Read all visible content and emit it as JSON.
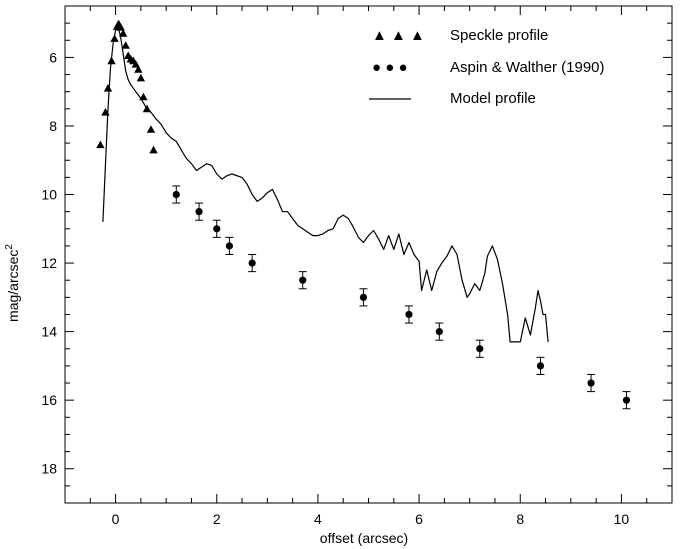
{
  "chart_data": {
    "type": "scatter",
    "title": "",
    "xlabel": "offset (arcsec)",
    "ylabel": "mag/arcsec",
    "ylabel_superscript": "2",
    "xlim": [
      -1.0,
      11.0
    ],
    "ylim": [
      19.0,
      4.5
    ],
    "y_inverted": true,
    "grid": false,
    "legend_position": "top-right",
    "x_ticks": [
      0,
      2,
      4,
      6,
      8,
      10
    ],
    "x_tick_labels": [
      "0",
      "2",
      "4",
      "6",
      "8",
      "10"
    ],
    "y_ticks": [
      6,
      8,
      10,
      12,
      14,
      16,
      18
    ],
    "y_tick_labels": [
      "6",
      "8",
      "10",
      "12",
      "14",
      "16",
      "18"
    ],
    "series": [
      {
        "name": "Speckle profile",
        "kind": "triangle",
        "color": "#000000",
        "legend_marker": "▲  ▲  ▲",
        "points": [
          [
            -0.3,
            8.55
          ],
          [
            -0.2,
            7.6
          ],
          [
            -0.15,
            6.9
          ],
          [
            -0.08,
            6.1
          ],
          [
            -0.02,
            5.45
          ],
          [
            0.03,
            5.1
          ],
          [
            0.06,
            5.02
          ],
          [
            0.1,
            5.12
          ],
          [
            0.15,
            5.3
          ],
          [
            0.2,
            5.65
          ],
          [
            0.25,
            5.95
          ],
          [
            0.3,
            6.05
          ],
          [
            0.35,
            6.1
          ],
          [
            0.4,
            6.2
          ],
          [
            0.45,
            6.35
          ],
          [
            0.5,
            6.6
          ],
          [
            0.55,
            7.15
          ],
          [
            0.62,
            7.5
          ],
          [
            0.7,
            8.1
          ],
          [
            0.75,
            8.7
          ]
        ]
      },
      {
        "name": "Aspin & Walther (1990)",
        "kind": "circle",
        "color": "#000000",
        "legend_marker": "●  ●  ●",
        "error": 0.25,
        "points": [
          [
            1.2,
            10.0
          ],
          [
            1.65,
            10.5
          ],
          [
            2.0,
            11.0
          ],
          [
            2.25,
            11.5
          ],
          [
            2.7,
            12.0
          ],
          [
            3.7,
            12.5
          ],
          [
            4.9,
            13.0
          ],
          [
            5.8,
            13.5
          ],
          [
            6.4,
            14.0
          ],
          [
            7.2,
            14.5
          ],
          [
            8.4,
            15.0
          ],
          [
            9.4,
            15.5
          ],
          [
            10.1,
            16.0
          ]
        ]
      },
      {
        "name": "Model profile",
        "kind": "line",
        "color": "#000000",
        "points": [
          [
            -0.25,
            10.8
          ],
          [
            -0.2,
            9.1
          ],
          [
            -0.15,
            7.5
          ],
          [
            -0.1,
            6.3
          ],
          [
            -0.05,
            5.6
          ],
          [
            0.0,
            5.2
          ],
          [
            0.05,
            5.1
          ],
          [
            0.1,
            5.4
          ],
          [
            0.15,
            5.9
          ],
          [
            0.2,
            6.4
          ],
          [
            0.25,
            6.65
          ],
          [
            0.3,
            6.8
          ],
          [
            0.4,
            7.0
          ],
          [
            0.5,
            7.2
          ],
          [
            0.6,
            7.45
          ],
          [
            0.7,
            7.6
          ],
          [
            0.8,
            7.8
          ],
          [
            0.9,
            7.95
          ],
          [
            1.0,
            8.2
          ],
          [
            1.1,
            8.35
          ],
          [
            1.2,
            8.45
          ],
          [
            1.3,
            8.7
          ],
          [
            1.4,
            8.95
          ],
          [
            1.5,
            9.1
          ],
          [
            1.6,
            9.3
          ],
          [
            1.7,
            9.2
          ],
          [
            1.8,
            9.1
          ],
          [
            1.9,
            9.15
          ],
          [
            2.0,
            9.4
          ],
          [
            2.1,
            9.55
          ],
          [
            2.2,
            9.45
          ],
          [
            2.3,
            9.4
          ],
          [
            2.5,
            9.5
          ],
          [
            2.6,
            9.7
          ],
          [
            2.7,
            10.0
          ],
          [
            2.8,
            10.2
          ],
          [
            2.9,
            10.1
          ],
          [
            3.0,
            9.95
          ],
          [
            3.1,
            9.85
          ],
          [
            3.2,
            10.15
          ],
          [
            3.3,
            10.5
          ],
          [
            3.4,
            10.5
          ],
          [
            3.5,
            10.7
          ],
          [
            3.6,
            10.9
          ],
          [
            3.7,
            11.0
          ],
          [
            3.8,
            11.1
          ],
          [
            3.9,
            11.2
          ],
          [
            4.0,
            11.2
          ],
          [
            4.1,
            11.15
          ],
          [
            4.2,
            11.05
          ],
          [
            4.3,
            11.0
          ],
          [
            4.4,
            10.7
          ],
          [
            4.5,
            10.6
          ],
          [
            4.6,
            10.7
          ],
          [
            4.7,
            10.95
          ],
          [
            4.8,
            11.25
          ],
          [
            4.9,
            11.4
          ],
          [
            5.0,
            11.2
          ],
          [
            5.1,
            11.05
          ],
          [
            5.2,
            11.3
          ],
          [
            5.3,
            11.6
          ],
          [
            5.4,
            11.2
          ],
          [
            5.5,
            11.6
          ],
          [
            5.6,
            11.15
          ],
          [
            5.7,
            11.75
          ],
          [
            5.8,
            11.4
          ],
          [
            5.9,
            11.75
          ],
          [
            6.0,
            11.95
          ],
          [
            6.05,
            12.8
          ],
          [
            6.15,
            12.2
          ],
          [
            6.25,
            12.8
          ],
          [
            6.35,
            12.25
          ],
          [
            6.45,
            12.0
          ],
          [
            6.55,
            11.8
          ],
          [
            6.65,
            11.5
          ],
          [
            6.75,
            11.75
          ],
          [
            6.85,
            12.5
          ],
          [
            6.95,
            13.0
          ],
          [
            7.0,
            12.9
          ],
          [
            7.1,
            12.6
          ],
          [
            7.2,
            12.8
          ],
          [
            7.3,
            12.3
          ],
          [
            7.35,
            11.8
          ],
          [
            7.45,
            11.5
          ],
          [
            7.55,
            11.9
          ],
          [
            7.65,
            12.6
          ],
          [
            7.75,
            13.5
          ],
          [
            7.8,
            14.3
          ],
          [
            8.0,
            14.3
          ],
          [
            8.1,
            13.6
          ],
          [
            8.2,
            14.1
          ],
          [
            8.3,
            13.3
          ],
          [
            8.35,
            12.8
          ],
          [
            8.4,
            13.1
          ],
          [
            8.45,
            13.5
          ],
          [
            8.5,
            13.5
          ],
          [
            8.55,
            14.3
          ]
        ]
      }
    ]
  }
}
